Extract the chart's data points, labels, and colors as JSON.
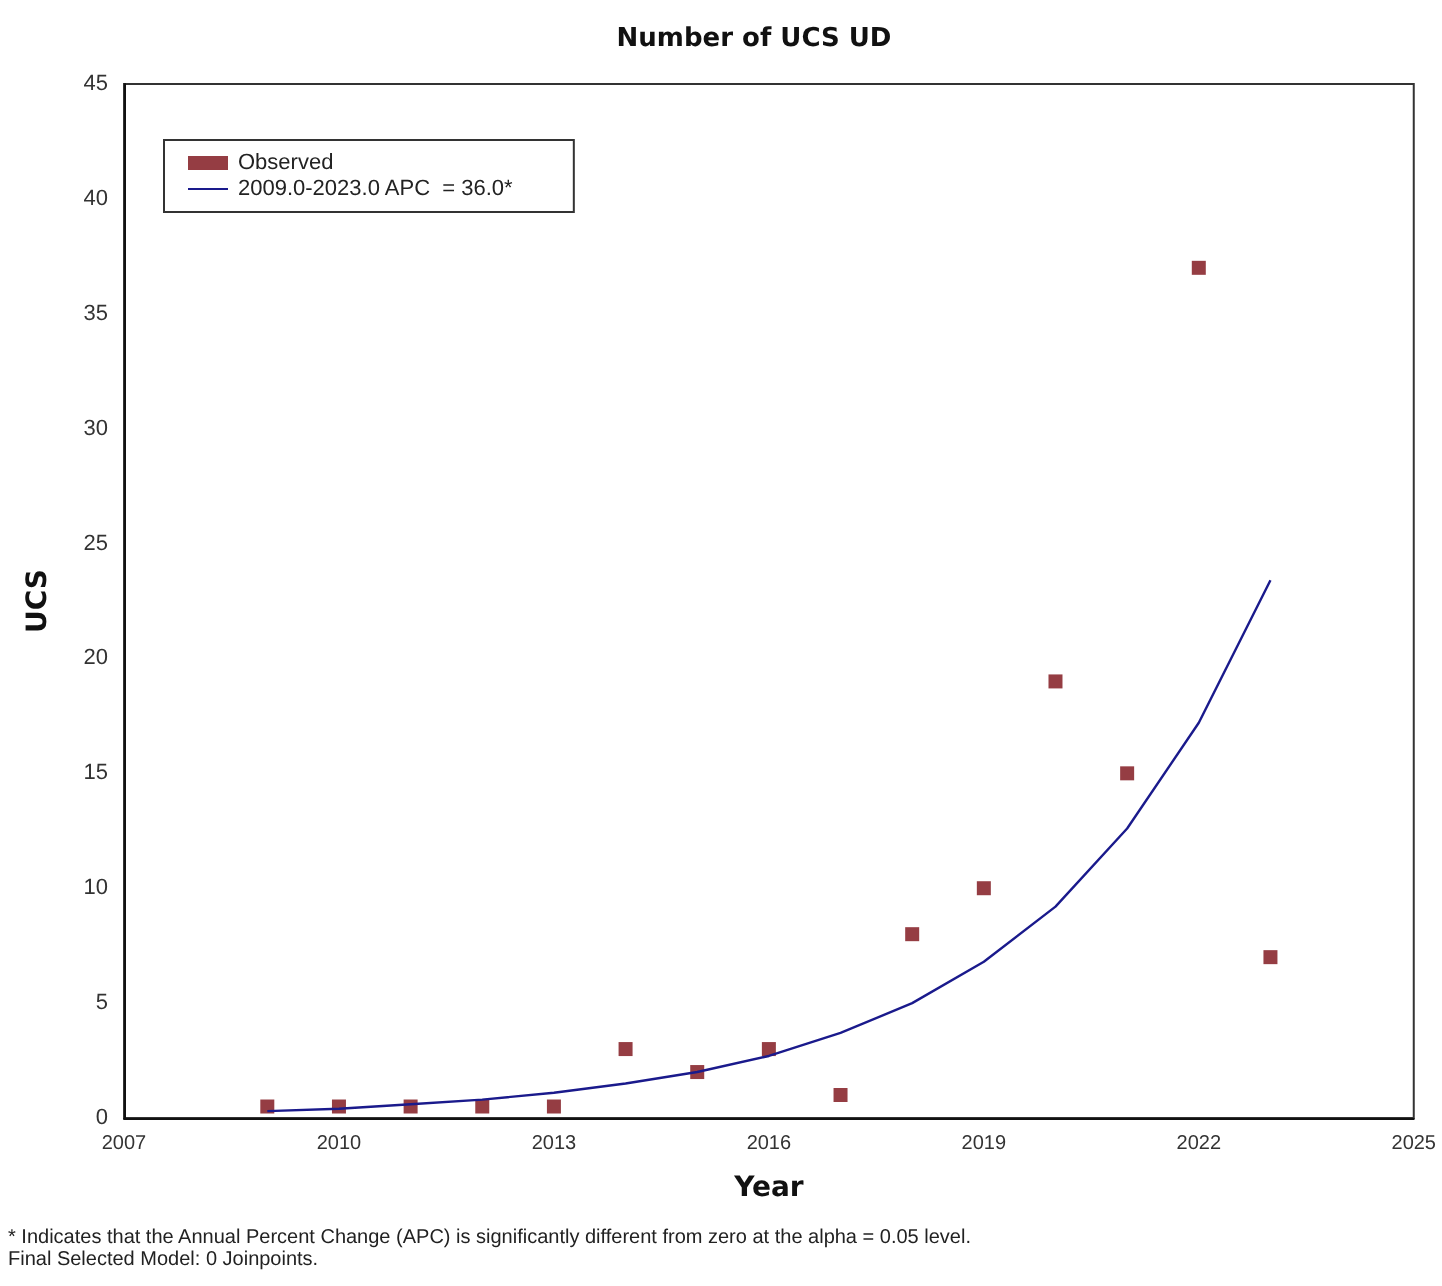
{
  "chart_data": {
    "type": "scatter",
    "title": "Number of UCS UD",
    "xlabel": "Year",
    "ylabel": "UCS",
    "xlim": [
      2007,
      2025
    ],
    "xticks": [
      2007,
      2010,
      2013,
      2016,
      2019,
      2022,
      2025
    ],
    "ylim": [
      0,
      45
    ],
    "yticks": [
      0,
      5,
      10,
      15,
      20,
      25,
      30,
      35,
      40,
      45
    ],
    "grid": false,
    "legend": "top left",
    "series": [
      {
        "name": "Observed",
        "marker": "square",
        "color": "#7b0c14",
        "x": [
          2009,
          2010,
          2011,
          2012,
          2013,
          2014,
          2015,
          2016,
          2017,
          2018,
          2019,
          2020,
          2021,
          2022,
          2023
        ],
        "values": [
          0.5,
          0.5,
          0.5,
          0.5,
          0.5,
          3,
          2,
          3,
          1,
          8,
          10,
          19,
          15,
          37,
          7
        ]
      },
      {
        "name": "2009.0-2023.0 APC  = 36.0*",
        "type": "line",
        "marker": "none",
        "line_style": "solid",
        "color": "#1a1a8c",
        "x": [
          2009,
          2010,
          2011,
          2012,
          2013,
          2014,
          2015,
          2016,
          2017,
          2018,
          2019,
          2020,
          2021,
          2022,
          2023
        ],
        "values": [
          0.3,
          0.4,
          0.6,
          0.8,
          1.1,
          1.5,
          2.0,
          2.7,
          3.7,
          5.0,
          6.8,
          9.2,
          12.6,
          17.2,
          23.4
        ]
      }
    ],
    "annotations": [
      "* Indicates that the Annual Percent Change (APC) is significantly different from zero at the alpha = 0.05 level.",
      "Final Selected Model: 0 Joinpoints."
    ]
  }
}
